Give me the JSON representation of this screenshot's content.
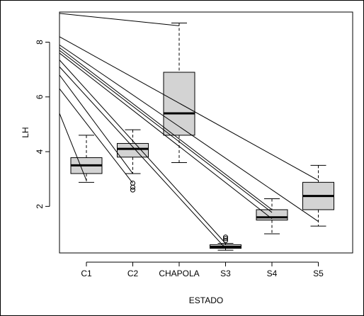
{
  "chart_data": {
    "type": "boxplot",
    "xlabel": "ESTADO",
    "ylabel": "LH",
    "categories": [
      "C1",
      "C2",
      "CHAPOLA",
      "S3",
      "S4",
      "S5"
    ],
    "yticks": [
      2,
      4,
      6,
      8
    ],
    "ylim": [
      0.3,
      9.1
    ],
    "grid": false,
    "box_color": "#d3d3d3",
    "boxes": [
      {
        "category": "C1",
        "whisker_low": 2.88,
        "q1": 3.2,
        "median": 3.5,
        "q3": 3.78,
        "whisker_high": 4.6,
        "outliers": []
      },
      {
        "category": "C2",
        "whisker_low": 3.2,
        "q1": 3.8,
        "median": 4.1,
        "q3": 4.3,
        "whisker_high": 4.8,
        "outliers": [
          2.6,
          2.7,
          2.85
        ]
      },
      {
        "category": "CHAPOLA",
        "whisker_low": 3.6,
        "q1": 4.6,
        "median": 5.4,
        "q3": 6.9,
        "whisker_high": 8.7,
        "outliers": []
      },
      {
        "category": "S3",
        "whisker_low": 0.4,
        "q1": 0.47,
        "median": 0.52,
        "q3": 0.6,
        "whisker_high": 0.65,
        "outliers": [
          0.75,
          0.82,
          0.88
        ]
      },
      {
        "category": "S4",
        "whisker_low": 1.0,
        "q1": 1.5,
        "median": 1.6,
        "q3": 1.88,
        "whisker_high": 2.28,
        "outliers": []
      },
      {
        "category": "S5",
        "whisker_low": 1.28,
        "q1": 1.88,
        "median": 2.38,
        "q3": 2.88,
        "whisker_high": 3.5,
        "outliers": []
      }
    ],
    "overlay_lines": [
      {
        "from_y": 9.05,
        "to_category": "CHAPOLA",
        "to_y": 8.6
      },
      {
        "from_y": 8.2,
        "to_category": "S5",
        "to_y": 2.95
      },
      {
        "from_y": 7.9,
        "to_category": "S5",
        "to_y": 1.45
      },
      {
        "from_y": 7.8,
        "to_category": "S4",
        "to_y": 1.88
      },
      {
        "from_y": 7.7,
        "to_category": "S4",
        "to_y": 1.78
      },
      {
        "from_y": 7.6,
        "to_category": "S4",
        "to_y": 1.55
      },
      {
        "from_y": 7.35,
        "to_category": "S3",
        "to_y": 0.65
      },
      {
        "from_y": 7.1,
        "to_category": "S3",
        "to_y": 0.47
      },
      {
        "from_y": 6.8,
        "to_category": "C2",
        "to_y": 3.2
      },
      {
        "from_y": 6.3,
        "to_category": "C2",
        "to_y": 2.85
      },
      {
        "from_y": 5.4,
        "to_category": "C1",
        "to_y": 2.95
      }
    ]
  }
}
